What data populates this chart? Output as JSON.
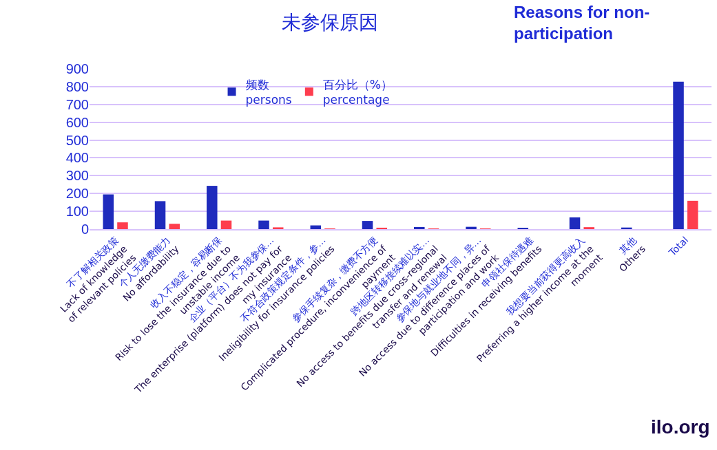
{
  "chart_data": {
    "type": "bar",
    "title": "未参保原因",
    "subtitle": "Reasons for non-participation",
    "categories": [
      "不了解相关政策\nLack of knowledge\nof relevant policies",
      "个人无缴费能力\nNo affordability",
      "收入不稳定，容易断保\nRisk to lose the insurance due to\nunstable income",
      "企业（平台）不为我参保…\nThe enterprise (platform) does not pay for\nmy insurance",
      "不符合政策规定条件，参…\nIneligibility for insurance policies",
      "参保手续复杂，缴费不方便\nComplicated procedure, inconvenience of\npayment",
      "跨地区转移接续难以实…\nNo access to benefits due cross-regional\ntransfer and renewal",
      "参保地与就业地不同，异…\nNo access due to difference places of\nparticipation and work",
      "申领社保待遇难\nDifficulties in receiving benefits",
      "我想要当前获得更高收入\nPreferring a higher income at the\nmoment",
      "其他\nOthers",
      "Total"
    ],
    "series": [
      {
        "name": "频数\npersons",
        "color": "#1f2bbd",
        "values": [
          195,
          157,
          243,
          48,
          21,
          46,
          12,
          13,
          5,
          66,
          9,
          828
        ]
      },
      {
        "name": "百分比（%）\npercentage",
        "color": "#fe3d4e",
        "values": [
          38,
          30,
          48,
          10,
          2,
          8,
          1,
          1,
          0,
          11,
          0,
          159
        ]
      }
    ],
    "ylim": [
      0,
      900
    ],
    "yticks": [
      0,
      100,
      200,
      300,
      400,
      500,
      600,
      700,
      800,
      900
    ],
    "grid": "y",
    "legend": "top",
    "annotations": [
      "ilo.org"
    ]
  }
}
